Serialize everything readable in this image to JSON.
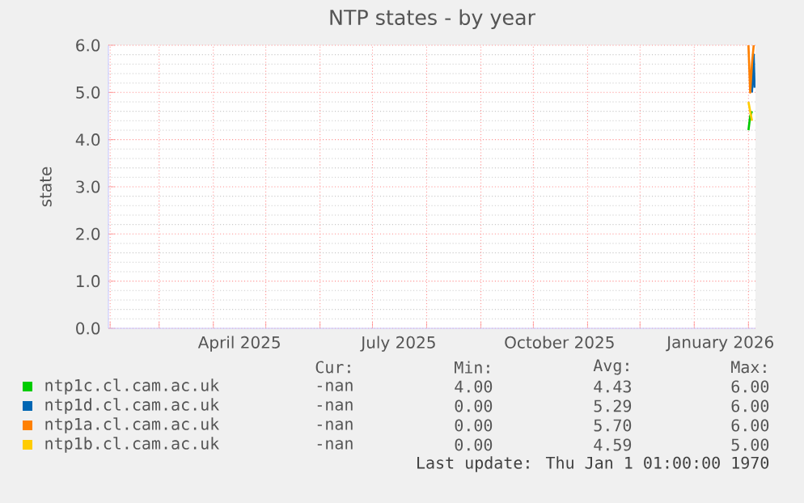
{
  "chart_data": {
    "type": "line",
    "title": "NTP states - by year",
    "ylabel": "state",
    "xlim": [
      "2025-01-31",
      "2026-02-05"
    ],
    "xticks": [
      {
        "value": "2025-02-01",
        "label": null
      },
      {
        "value": "2025-03-01",
        "label": null
      },
      {
        "value": "2025-04-01",
        "label": null
      },
      {
        "value": "2025-04-16",
        "label": "April 2025"
      },
      {
        "value": "2025-05-01",
        "label": null
      },
      {
        "value": "2025-06-01",
        "label": null
      },
      {
        "value": "2025-07-01",
        "label": null
      },
      {
        "value": "2025-07-16",
        "label": "July 2025"
      },
      {
        "value": "2025-08-01",
        "label": null
      },
      {
        "value": "2025-09-01",
        "label": null
      },
      {
        "value": "2025-10-01",
        "label": null
      },
      {
        "value": "2025-10-16",
        "label": "October 2025"
      },
      {
        "value": "2025-11-01",
        "label": null
      },
      {
        "value": "2025-12-01",
        "label": null
      },
      {
        "value": "2026-01-01",
        "label": null
      },
      {
        "value": "2026-01-16",
        "label": "January 2026"
      },
      {
        "value": "2026-02-01",
        "label": null
      }
    ],
    "ylim": [
      0,
      6
    ],
    "yticks": [
      {
        "value": 0,
        "label": "0.0"
      },
      {
        "value": 1,
        "label": "1.0"
      },
      {
        "value": 2,
        "label": "2.0"
      },
      {
        "value": 3,
        "label": "3.0"
      },
      {
        "value": 4,
        "label": "4.0"
      },
      {
        "value": 5,
        "label": "5.0"
      },
      {
        "value": 6,
        "label": "6.0"
      }
    ],
    "grid": true,
    "legend": "bottom",
    "series": [
      {
        "name": "ntp1c.cl.cam.ac.uk",
        "color": "#00cc00",
        "x": [
          "2026-02-01",
          "2026-02-02",
          "2026-02-03"
        ],
        "values": [
          4.2,
          4.5,
          4.6
        ]
      },
      {
        "name": "ntp1d.cl.cam.ac.uk",
        "color": "#0066b3",
        "x": [
          "2026-02-03",
          "2026-02-04",
          "2026-02-04T12:00"
        ],
        "values": [
          5.0,
          5.8,
          5.1
        ]
      },
      {
        "name": "ntp1a.cl.cam.ac.uk",
        "color": "#ff8000",
        "x": [
          "2026-02-01",
          "2026-02-02",
          "2026-02-03",
          "2026-02-04"
        ],
        "values": [
          6.0,
          5.0,
          5.6,
          6.0
        ]
      },
      {
        "name": "ntp1b.cl.cam.ac.uk",
        "color": "#ffcc00",
        "x": [
          "2026-02-01",
          "2026-02-02",
          "2026-02-03"
        ],
        "values": [
          4.8,
          4.6,
          4.4
        ]
      }
    ],
    "annotations": [
      "Cur:",
      "Min:",
      "Avg:",
      "Max:",
      "-nan",
      "4.00",
      "4.43",
      "6.00",
      "-nan",
      "0.00",
      "5.29",
      "6.00",
      "-nan",
      "0.00",
      "5.70",
      "6.00",
      "-nan",
      "0.00",
      "4.59",
      "5.00",
      "Last update: Thu Jan  1 01:00:00 1970"
    ]
  }
}
